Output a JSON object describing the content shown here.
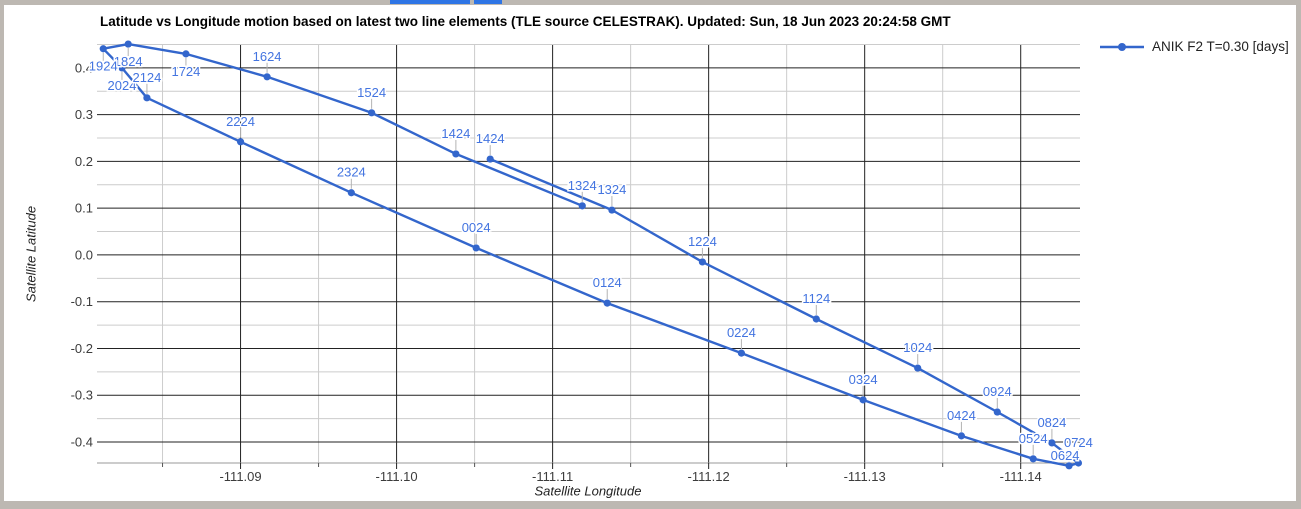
{
  "page": {
    "frame_color": "#bdb8b2",
    "card_color": "#ffffff",
    "clipped_buttons": [
      {
        "name": "clipped-toolbar-button-1",
        "color": "#2e75e5"
      },
      {
        "name": "clipped-toolbar-button-2",
        "color": "#2e75e5"
      }
    ]
  },
  "chart_data": {
    "type": "line",
    "title": "Latitude vs Longitude motion based on latest two line elements (TLE source CELESTRAK). Updated: Sun, 18 Jun 2023 20:24:58 GMT",
    "xlabel": "Satellite Longitude",
    "ylabel": "Satellite Latitude",
    "legend": {
      "position": "top-right",
      "entries": [
        {
          "label": "ANIK F2 T=0.30 [days]",
          "color": "#3366cc"
        }
      ]
    },
    "x_axis": {
      "range": [
        -111.0808,
        -111.1438
      ],
      "reversed_display": true,
      "ticks": [
        {
          "value": -111.09,
          "label": "-111.09"
        },
        {
          "value": -111.1,
          "label": "-111.10"
        },
        {
          "value": -111.11,
          "label": "-111.11"
        },
        {
          "value": -111.12,
          "label": "-111.12"
        },
        {
          "value": -111.13,
          "label": "-111.13"
        },
        {
          "value": -111.14,
          "label": "-111.14"
        }
      ],
      "minor_gridlines": [
        -111.085,
        -111.095,
        -111.105,
        -111.115,
        -111.125,
        -111.135
      ]
    },
    "y_axis": {
      "range": [
        -0.445,
        0.449
      ],
      "ticks": [
        {
          "value": 0.4,
          "label": "0.4"
        },
        {
          "value": 0.3,
          "label": "0.3"
        },
        {
          "value": 0.2,
          "label": "0.2"
        },
        {
          "value": 0.1,
          "label": "0.1"
        },
        {
          "value": 0.0,
          "label": "0.0"
        },
        {
          "value": -0.1,
          "label": "-0.1"
        },
        {
          "value": -0.2,
          "label": "-0.2"
        },
        {
          "value": -0.3,
          "label": "-0.3"
        },
        {
          "value": -0.4,
          "label": "-0.4"
        }
      ],
      "minor_gridlines": [
        0.45,
        0.35,
        0.25,
        0.15,
        0.05,
        -0.05,
        -0.15,
        -0.25,
        -0.35
      ]
    },
    "grid": {
      "major_color": "#222222",
      "minor_color": "#cccccc",
      "baseline_color": "#999999",
      "tick_color": "#555555",
      "tick_label_color": "#3c3c3c"
    },
    "annotation_color": "#4374e0",
    "annotation_stem_color": "#b3b3b3",
    "series": [
      {
        "name": "ANIK F2 T=0.30 [days]",
        "color": "#3366cc",
        "points": [
          {
            "t": "1324",
            "lon": -111.1119,
            "lat": 0.105
          },
          {
            "t": "1424",
            "lon": -111.1038,
            "lat": 0.216
          },
          {
            "t": "1524",
            "lon": -111.0984,
            "lat": 0.304
          },
          {
            "t": "1624",
            "lon": -111.0917,
            "lat": 0.381
          },
          {
            "t": "1724",
            "lon": -111.0865,
            "lat": 0.43,
            "side": "below"
          },
          {
            "t": "1824",
            "lon": -111.0828,
            "lat": 0.451,
            "side": "below"
          },
          {
            "t": "1924",
            "lon": -111.0812,
            "lat": 0.441,
            "side": "below"
          },
          {
            "t": "2024",
            "lon": -111.0824,
            "lat": 0.4,
            "side": "below"
          },
          {
            "t": "2124",
            "lon": -111.084,
            "lat": 0.336
          },
          {
            "t": "2224",
            "lon": -111.09,
            "lat": 0.242
          },
          {
            "t": "2324",
            "lon": -111.0971,
            "lat": 0.133
          },
          {
            "t": "0024",
            "lon": -111.1051,
            "lat": 0.015
          },
          {
            "t": "0124",
            "lon": -111.1135,
            "lat": -0.103
          },
          {
            "t": "0224",
            "lon": -111.1221,
            "lat": -0.21
          },
          {
            "t": "0324",
            "lon": -111.1299,
            "lat": -0.31
          },
          {
            "t": "0424",
            "lon": -111.1362,
            "lat": -0.387
          },
          {
            "t": "0524",
            "lon": -111.1408,
            "lat": -0.436
          },
          {
            "t": "0624",
            "lon": -111.1431,
            "lat": -0.451,
            "dx": -4,
            "dy": 10
          },
          {
            "t": "0724",
            "lon": -111.1437,
            "lat": -0.445
          },
          {
            "t": "0824",
            "lon": -111.142,
            "lat": -0.402
          },
          {
            "t": "0924",
            "lon": -111.1385,
            "lat": -0.336
          },
          {
            "t": "1024",
            "lon": -111.1334,
            "lat": -0.242
          },
          {
            "t": "1124",
            "lon": -111.1269,
            "lat": -0.137
          },
          {
            "t": "1224",
            "lon": -111.1196,
            "lat": -0.015
          },
          {
            "t": "1324",
            "lon": -111.1138,
            "lat": 0.096
          },
          {
            "t": "1424",
            "lon": -111.106,
            "lat": 0.205
          }
        ]
      }
    ]
  }
}
